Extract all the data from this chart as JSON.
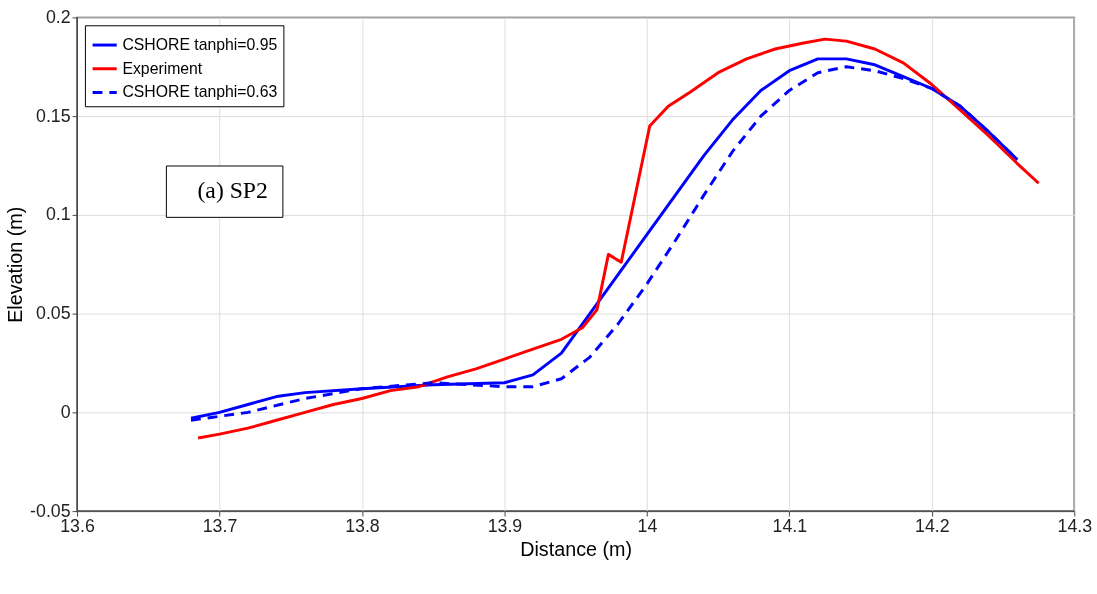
{
  "chart_data": {
    "type": "line",
    "xlabel": "Distance (m)",
    "ylabel": "Elevation (m)",
    "xlim": [
      13.6,
      14.3
    ],
    "ylim": [
      -0.05,
      0.2
    ],
    "xticks": [
      13.6,
      13.7,
      13.8,
      13.9,
      14,
      14.1,
      14.2,
      14.3
    ],
    "yticks": [
      -0.05,
      0,
      0.05,
      0.1,
      0.15,
      0.2
    ],
    "grid": true,
    "legend": "top left",
    "annotations": [
      "(a) SP2"
    ],
    "series": [
      {
        "name": "CSHORE tanphi=0.95",
        "color": "#0000ff",
        "line_style": "solid",
        "x": [
          13.68,
          13.7,
          13.72,
          13.74,
          13.76,
          13.8,
          13.85,
          13.9,
          13.92,
          13.94,
          13.96,
          13.98,
          14.0,
          14.02,
          14.04,
          14.06,
          14.08,
          14.1,
          14.12,
          14.14,
          14.16,
          14.18,
          14.2,
          14.22,
          14.24,
          14.26
        ],
        "values": [
          -0.003,
          0.0,
          0.004,
          0.008,
          0.01,
          0.012,
          0.014,
          0.015,
          0.019,
          0.03,
          0.05,
          0.07,
          0.09,
          0.11,
          0.13,
          0.148,
          0.163,
          0.173,
          0.179,
          0.179,
          0.176,
          0.17,
          0.164,
          0.155,
          0.142,
          0.128
        ]
      },
      {
        "name": "Experiment",
        "color": "#ff0000",
        "line_style": "solid",
        "x": [
          13.685,
          13.7,
          13.72,
          13.74,
          13.76,
          13.78,
          13.8,
          13.82,
          13.84,
          13.86,
          13.88,
          13.9,
          13.92,
          13.94,
          13.955,
          13.965,
          13.973,
          13.982,
          14.002,
          14.015,
          14.03,
          14.05,
          14.07,
          14.09,
          14.11,
          14.125,
          14.14,
          14.16,
          14.18,
          14.2,
          14.22,
          14.24,
          14.26,
          14.275
        ],
        "values": [
          -0.013,
          -0.011,
          -0.008,
          -0.004,
          0.0,
          0.004,
          0.007,
          0.011,
          0.013,
          0.018,
          0.022,
          0.027,
          0.032,
          0.037,
          0.043,
          0.052,
          0.08,
          0.076,
          0.145,
          0.155,
          0.162,
          0.172,
          0.179,
          0.184,
          0.187,
          0.189,
          0.188,
          0.184,
          0.177,
          0.166,
          0.153,
          0.14,
          0.126,
          0.116
        ]
      },
      {
        "name": "CSHORE tanphi=0.63",
        "color": "#0000ff",
        "line_style": "dashed",
        "x": [
          13.68,
          13.72,
          13.76,
          13.8,
          13.85,
          13.9,
          13.92,
          13.94,
          13.96,
          13.98,
          14.0,
          14.02,
          14.04,
          14.06,
          14.08,
          14.1,
          14.12,
          14.14,
          14.16,
          14.18,
          14.2,
          14.22,
          14.24,
          14.26
        ],
        "values": [
          -0.004,
          0.0,
          0.007,
          0.012,
          0.015,
          0.013,
          0.013,
          0.017,
          0.028,
          0.045,
          0.065,
          0.087,
          0.11,
          0.132,
          0.15,
          0.163,
          0.172,
          0.175,
          0.173,
          0.169,
          0.164,
          0.155,
          0.142,
          0.128
        ]
      }
    ]
  }
}
